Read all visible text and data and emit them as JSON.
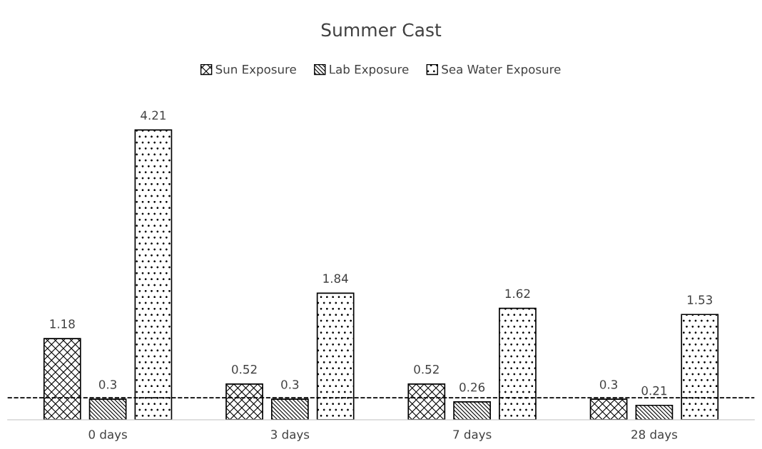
{
  "chart_data": {
    "type": "bar",
    "title": "Summer Cast",
    "categories": [
      "0 days",
      "3 days",
      "7 days",
      "28 days"
    ],
    "series": [
      {
        "name": "Sun Exposure",
        "color": "#000000",
        "values": [
          1.18,
          0.52,
          0.52,
          0.3
        ]
      },
      {
        "name": "Lab Exposure",
        "color": "#000000",
        "values": [
          0.3,
          0.3,
          0.26,
          0.21
        ]
      },
      {
        "name": "Sea Water Exposure",
        "color": "#000000",
        "values": [
          4.21,
          1.84,
          1.62,
          1.53
        ]
      }
    ],
    "data_labels": true,
    "grid": false,
    "legend": "top",
    "ref_lines": [
      {
        "axis": "y",
        "value": 0.32,
        "color": "#000000",
        "line_style": "dashed"
      }
    ]
  }
}
